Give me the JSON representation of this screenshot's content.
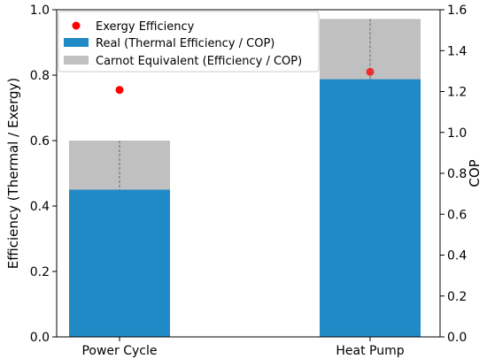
{
  "chart_data": {
    "type": "bar",
    "categories": [
      "Power Cycle",
      "Heat Pump"
    ],
    "series": [
      {
        "name": "Real (Thermal Efficiency / COP)",
        "axis": "right",
        "values": [
          0.72,
          1.26
        ],
        "left_axis_equivalent": [
          0.45,
          0.79
        ],
        "color": "#1f8ac6"
      },
      {
        "name": "Carnot Equivalent (Efficiency / COP)",
        "axis": "right",
        "values": [
          0.96,
          1.555
        ],
        "left_axis_equivalent": [
          0.6,
          0.972
        ],
        "color": "#c0c0c0",
        "stacked_behind": true
      },
      {
        "name": "Exergy Efficiency",
        "axis": "left",
        "type": "scatter",
        "values": [
          0.755,
          0.81
        ],
        "color": "#ff0000"
      }
    ],
    "ylabel": "Efficiency (Thermal / Exergy)",
    "y2label": "COP",
    "ylim": [
      0,
      1.0
    ],
    "y2lim": [
      0,
      1.6
    ],
    "yticks": [
      "0.0",
      "0.2",
      "0.4",
      "0.6",
      "0.8",
      "1.0"
    ],
    "y2ticks": [
      "0.0",
      "0.2",
      "0.4",
      "0.6",
      "0.8",
      "1.0",
      "1.2",
      "1.4",
      "1.6"
    ],
    "legend": {
      "placement": "top-left",
      "entries": [
        "Exergy Efficiency",
        "Real (Thermal Efficiency / COP)",
        "Carnot Equivalent (Efficiency / COP)"
      ]
    },
    "grid": false
  }
}
